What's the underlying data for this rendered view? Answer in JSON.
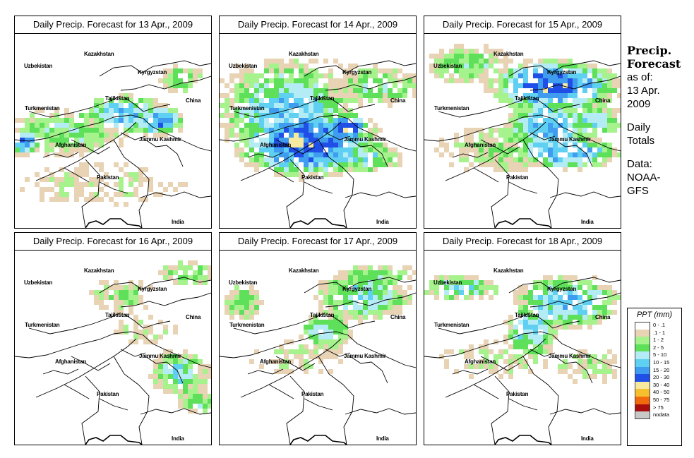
{
  "panels": [
    {
      "title": "Daily Precip. Forecast for  13 Apr., 2009",
      "day": 13
    },
    {
      "title": "Daily Precip. Forecast for  14 Apr., 2009",
      "day": 14
    },
    {
      "title": "Daily Precip. Forecast for  15 Apr., 2009",
      "day": 15
    },
    {
      "title": "Daily Precip. Forecast for  16 Apr., 2009",
      "day": 16
    },
    {
      "title": "Daily Precip. Forecast for  17 Apr., 2009",
      "day": 17
    },
    {
      "title": "Daily Precip. Forecast for  18 Apr., 2009",
      "day": 18
    }
  ],
  "map_labels": {
    "uzbekistan": "Uzbekistan",
    "kazakhstan": "Kazakhstan",
    "kyrgyzstan": "Kyrgyzstan",
    "tajikistan": "Tajikistan",
    "turkmenistan": "Turkmenistan",
    "china": "China",
    "afghanistan": "Afghanistan",
    "jammu_kashmir": "Jammu Kashmir",
    "pakistan": "Pakistan",
    "india": "India"
  },
  "sidebar": {
    "title_line1": "Precip.",
    "title_line2": "Forecast",
    "asof_line1": "as of:",
    "asof_line2": "13 Apr.",
    "asof_line3": "2009",
    "totals_line1": "Daily",
    "totals_line2": "Totals",
    "data_line1": "Data:",
    "data_line2": "NOAA-",
    "data_line3": "GFS"
  },
  "legend": {
    "title": "PPT (mm)",
    "items": [
      {
        "label": "0 - .1",
        "color": "#ffffff"
      },
      {
        "label": ".1 - 1",
        "color": "#e8d3b4"
      },
      {
        "label": "1 - 2",
        "color": "#a6f28c"
      },
      {
        "label": "2 - 5",
        "color": "#5ee05a"
      },
      {
        "label": "5 - 10",
        "color": "#b4ecf5"
      },
      {
        "label": "10 - 15",
        "color": "#5fd0f2"
      },
      {
        "label": "15 - 20",
        "color": "#3f9cef"
      },
      {
        "label": "20 - 30",
        "color": "#1f4fe6"
      },
      {
        "label": "30 - 40",
        "color": "#f8e9a0"
      },
      {
        "label": "40 - 50",
        "color": "#f6bf2e"
      },
      {
        "label": "50 - 75",
        "color": "#f26a0e"
      },
      {
        "label": "> 75",
        "color": "#a80e0e"
      },
      {
        "label": "nodata",
        "color": "#c8c8c8"
      }
    ]
  }
}
